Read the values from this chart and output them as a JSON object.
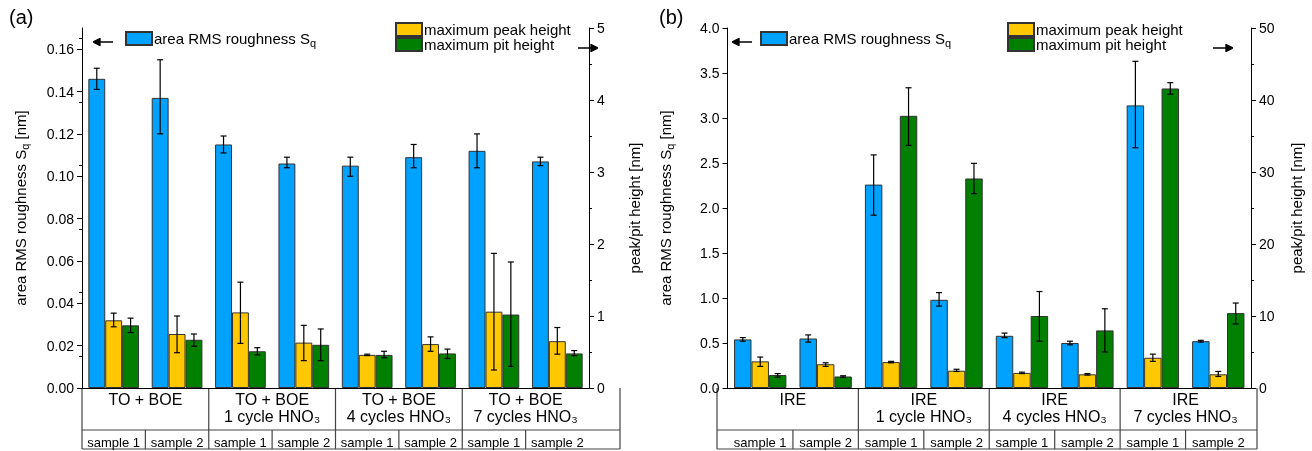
{
  "chart_data": [
    {
      "type": "bar",
      "title": "(a)",
      "ylabel": "area RMS roughness S$_{q}$ [nm]",
      "y2label": "peak/pit height [nm]",
      "categories": [
        "sample 1",
        "sample 2",
        "sample 1",
        "sample 2",
        "sample 1",
        "sample 2",
        "sample 1",
        "sample 2"
      ],
      "annotations": [
        "TO + BOE",
        "TO + BOE\n1 cycle HNO₃",
        "TO + BOE\n4 cycles HNO₃",
        "TO + BOE\n7 cycles HNO₃"
      ],
      "series": [
        {
          "name": "area RMS roughness S$_{q}$",
          "color": "#00a2ff",
          "values": [
            0.146,
            0.137,
            0.115,
            0.106,
            0.105,
            0.109,
            0.112,
            0.107
          ],
          "errors": [
            [
              0.141,
              0.151
            ],
            [
              0.12,
              0.155
            ],
            [
              0.111,
              0.119
            ],
            [
              0.104,
              0.109
            ],
            [
              0.1,
              0.109
            ],
            [
              0.104,
              0.115
            ],
            [
              0.104,
              0.12
            ],
            [
              0.105,
              0.109
            ]
          ]
        },
        {
          "name": "maximum peak height",
          "color": "#ffc800",
          "axis": "y2",
          "values": [
            0.94,
            0.75,
            1.05,
            0.63,
            0.46,
            0.61,
            1.06,
            0.65
          ],
          "errors": [
            [
              0.85,
              1.04
            ],
            [
              0.49,
              1.0
            ],
            [
              0.62,
              1.47
            ],
            [
              0.38,
              0.87
            ],
            [
              0.45,
              0.47
            ],
            [
              0.51,
              0.71
            ],
            [
              0.25,
              1.87
            ],
            [
              0.47,
              0.84
            ]
          ]
        },
        {
          "name": "maximum pit height",
          "color": "#007f00",
          "axis": "y2",
          "values": [
            0.87,
            0.67,
            0.51,
            0.6,
            0.46,
            0.48,
            1.02,
            0.48
          ],
          "errors": [
            [
              0.77,
              0.97
            ],
            [
              0.58,
              0.75
            ],
            [
              0.46,
              0.56
            ],
            [
              0.38,
              0.82
            ],
            [
              0.42,
              0.51
            ],
            [
              0.41,
              0.54
            ],
            [
              0.3,
              1.75
            ],
            [
              0.45,
              0.52
            ]
          ]
        }
      ],
      "ylim": [
        0,
        0.17
      ],
      "yticks": [
        {
          "value": 0,
          "label": "0.00"
        },
        0.02,
        0.04,
        0.06,
        0.08,
        {
          "value": 0.1,
          "label": "0.10"
        },
        0.12,
        0.14,
        0.16
      ],
      "y2lim": [
        0,
        5
      ],
      "y2ticks": [
        0,
        1,
        2,
        3,
        4,
        5
      ],
      "legend": "top"
    },
    {
      "type": "bar",
      "title": "(b)",
      "ylabel": "area RMS roughness S$_{q}$ [nm]",
      "y2label": "peak/pit height [nm]",
      "categories": [
        "sample 1",
        "sample 2",
        "sample 1",
        "sample 2",
        "sample 1",
        "sample 2",
        "sample 1",
        "sample 2"
      ],
      "annotations": [
        "IRE",
        "IRE\n1 cycle HNO₃",
        "IRE\n4 cycles HNO₃",
        "IRE\n7 cycles HNO₃"
      ],
      "series": [
        {
          "name": "area RMS roughness S$_{q}$",
          "color": "#00a2ff",
          "values": [
            0.54,
            0.55,
            2.26,
            0.98,
            0.58,
            0.5,
            3.14,
            0.52
          ],
          "errors": [
            [
              0.52,
              0.56
            ],
            [
              0.51,
              0.59
            ],
            [
              1.92,
              2.59
            ],
            [
              0.91,
              1.06
            ],
            [
              0.56,
              0.61
            ],
            [
              0.48,
              0.52
            ],
            [
              2.67,
              3.63
            ],
            [
              0.51,
              0.53
            ]
          ]
        },
        {
          "name": "maximum peak height",
          "color": "#ffc800",
          "axis": "y2",
          "values": [
            3.7,
            3.3,
            3.6,
            2.4,
            2.1,
            1.9,
            4.2,
            1.9
          ],
          "errors": [
            [
              3.0,
              4.3
            ],
            [
              3.0,
              3.5
            ],
            [
              3.5,
              3.7
            ],
            [
              2.3,
              2.6
            ],
            [
              2.0,
              2.2
            ],
            [
              1.8,
              2.0
            ],
            [
              3.7,
              4.7
            ],
            [
              1.6,
              2.3
            ]
          ]
        },
        {
          "name": "maximum pit height",
          "color": "#007f00",
          "axis": "y2",
          "values": [
            1.8,
            1.6,
            37.8,
            29.1,
            10.0,
            8.0,
            41.6,
            10.4
          ],
          "errors": [
            [
              1.5,
              2.0
            ],
            [
              1.5,
              1.7
            ],
            [
              33.7,
              41.7
            ],
            [
              27.0,
              31.2
            ],
            [
              6.5,
              13.4
            ],
            [
              5.0,
              11.0
            ],
            [
              40.8,
              42.4
            ],
            [
              8.9,
              11.8
            ]
          ]
        }
      ],
      "ylim": [
        0,
        4
      ],
      "yticks": [
        {
          "value": 0,
          "label": "0.0"
        },
        0.5,
        {
          "value": 1,
          "label": "1.0"
        },
        1.5,
        {
          "value": 2,
          "label": "2.0"
        },
        2.5,
        {
          "value": 3,
          "label": "3.0"
        },
        3.5,
        {
          "value": 4,
          "label": "4.0"
        }
      ],
      "y2lim": [
        0,
        50
      ],
      "y2ticks": [
        0,
        10,
        20,
        30,
        40,
        50
      ],
      "legend": "top"
    }
  ]
}
